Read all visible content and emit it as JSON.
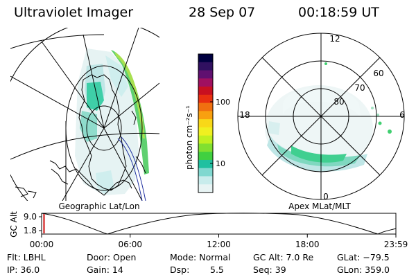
{
  "header": {
    "instrument": "Ultraviolet Imager",
    "date": "28 Sep 07",
    "time": "00:18:59 UT"
  },
  "geo_panel": {
    "caption": "Geographic Lat/Lon"
  },
  "apex_panel": {
    "caption": "Apex MLat/MLT",
    "mlt_labels": {
      "top": "12",
      "left": "18",
      "right": "6",
      "bottom": "0"
    },
    "lat_labels": [
      "60",
      "70",
      "80"
    ]
  },
  "colorbar": {
    "unit_label": "photon cm⁻²s⁻¹",
    "ticks": [
      "100",
      "10"
    ],
    "colors": [
      "#000040",
      "#301060",
      "#601070",
      "#a01060",
      "#c81020",
      "#e83010",
      "#f07010",
      "#f8a010",
      "#f8d818",
      "#f0f020",
      "#c0f020",
      "#80e030",
      "#40d040",
      "#20c0a0",
      "#80d8d0",
      "#c8ecec",
      "#e8f4f4"
    ]
  },
  "altitude_plot": {
    "axis_title": "GC Alt",
    "y_ticks": [
      "9.0",
      "1.8"
    ],
    "x_ticks": [
      "00:00",
      "06:00",
      "12:00",
      "18:00",
      "23:59"
    ]
  },
  "status": {
    "filter": "Flt: LBHL",
    "ip": "IP: 36.0",
    "door": "Door: Open",
    "gain": "Gain: 14",
    "mode": "Mode: Normal",
    "dsp_label": "Dsp:",
    "dsp_value": "5.5",
    "gc_alt": "GC Alt: 7.0 Re",
    "seq": "Seq: 39",
    "glat": "GLat: −79.5",
    "glon": "GLon: 359.0"
  }
}
